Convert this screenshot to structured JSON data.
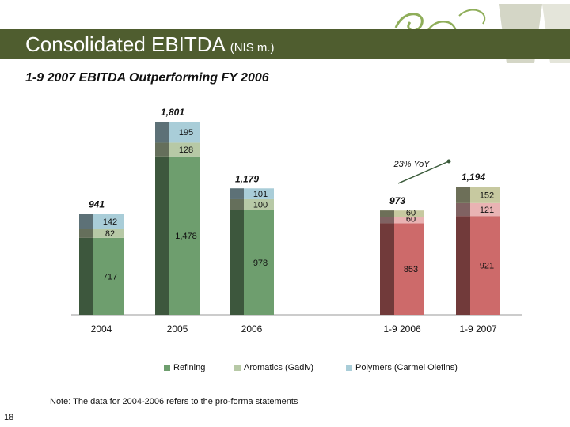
{
  "slide": {
    "title": "Consolidated EBITDA",
    "title_unit": "(NIS m.)",
    "subtitle": "1-9 2007 EBITDA Outperforming FY 2006",
    "note": "Note: The data for 2004-2006 refers to the pro-forma statements",
    "page_number": "18"
  },
  "chart_data": {
    "type": "bar",
    "stacked": true,
    "categories": [
      "2004",
      "2005",
      "2006",
      "1-9 2006",
      "1-9 2007"
    ],
    "series": [
      {
        "name": "Refining",
        "values": [
          717,
          1478,
          978,
          853,
          921
        ],
        "color": "#6e9e6e",
        "color_alt": "#cd6a6a"
      },
      {
        "name": "Aromatics (Gadiv)",
        "values": [
          82,
          128,
          100,
          60,
          121
        ],
        "color": "#b7c9a6",
        "color_alt": "#e9b3b3"
      },
      {
        "name": "Polymers (Carmel Olefins)",
        "values": [
          142,
          195,
          101,
          60,
          152
        ],
        "color": "#a9cdd8",
        "color_alt": "#c7c9a0"
      }
    ],
    "totals": [
      "941",
      "1,801",
      "1,179",
      "973",
      "1,194"
    ],
    "value_labels": [
      [
        "717",
        "82",
        "142"
      ],
      [
        "1,478",
        "128",
        "195"
      ],
      [
        "978",
        "100",
        "101"
      ],
      [
        "853",
        "60",
        "60"
      ],
      [
        "921",
        "121",
        "152"
      ]
    ],
    "highlight_categories": [
      "1-9 2006",
      "1-9 2007"
    ],
    "annotation": "23% YoY",
    "legend_position": "bottom",
    "ylim": [
      0,
      1900
    ],
    "grid": false
  }
}
